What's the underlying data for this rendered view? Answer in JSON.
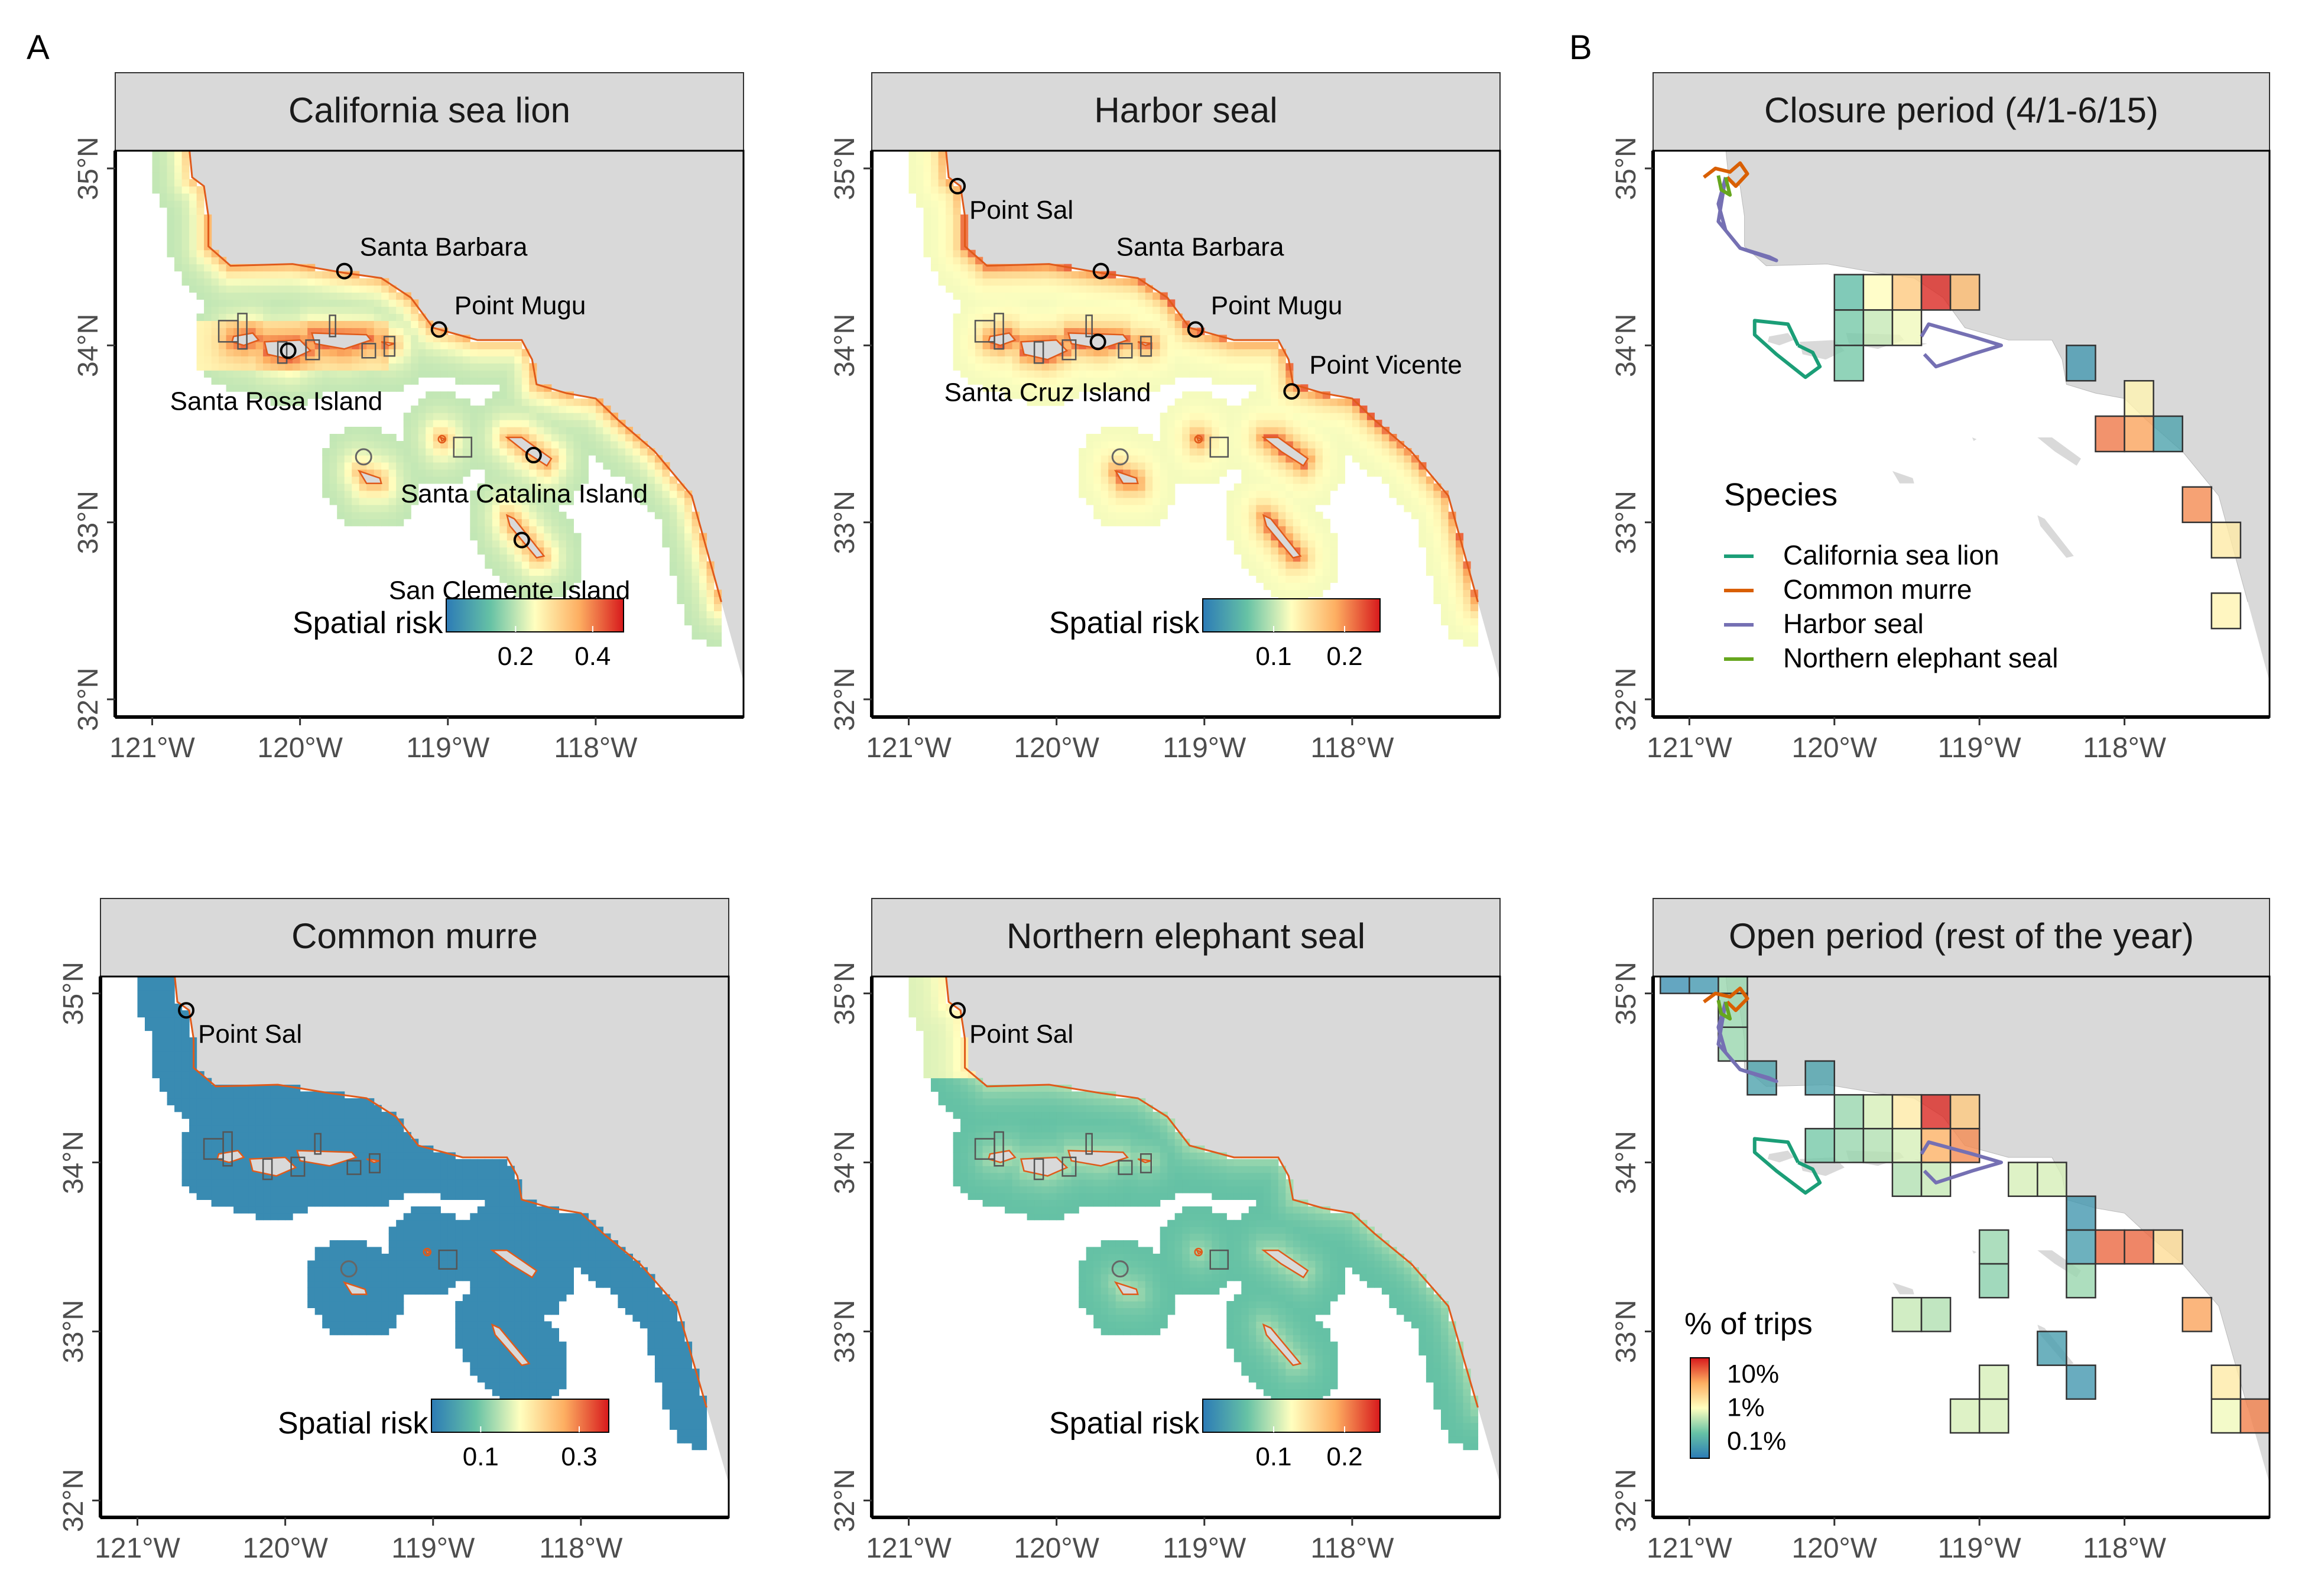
{
  "figure": {
    "panel_letters": [
      "A",
      "B"
    ]
  },
  "axes": {
    "x_ticks": [
      "121°W",
      "120°W",
      "119°W",
      "118°W"
    ],
    "y_ticks": [
      "32°N",
      "33°N",
      "34°N",
      "35°N"
    ]
  },
  "chart_data": [
    {
      "type": "heatmap",
      "title": "California sea lion",
      "xlim": [
        -121.25,
        -117.0
      ],
      "ylim": [
        31.9,
        35.1
      ],
      "colorbar": {
        "label": "Spatial risk",
        "ticks": [
          0.2,
          0.4
        ],
        "range": [
          0.02,
          0.48
        ]
      },
      "base_level": 0.2,
      "places": [
        {
          "name": "Santa Barbara",
          "lon": -119.7,
          "lat": 34.42
        },
        {
          "name": "Point Mugu",
          "lon": -119.06,
          "lat": 34.09
        },
        {
          "name": "Santa Rosa Island",
          "lon": -120.08,
          "lat": 33.97
        },
        {
          "name": "Santa Catalina Island",
          "lon": -118.42,
          "lat": 33.38
        },
        {
          "name": "San Clemente Island",
          "lon": -118.5,
          "lat": 32.9
        }
      ]
    },
    {
      "type": "heatmap",
      "title": "Harbor seal",
      "xlim": [
        -121.25,
        -117.0
      ],
      "ylim": [
        31.9,
        35.1
      ],
      "colorbar": {
        "label": "Spatial risk",
        "ticks": [
          0.1,
          0.2
        ],
        "range": [
          0.0,
          0.25
        ]
      },
      "base_level": 0.12,
      "places": [
        {
          "name": "Point Sal",
          "lon": -120.67,
          "lat": 34.9
        },
        {
          "name": "Santa Barbara",
          "lon": -119.7,
          "lat": 34.42
        },
        {
          "name": "Point Mugu",
          "lon": -119.06,
          "lat": 34.09
        },
        {
          "name": "Santa Cruz Island",
          "lon": -119.72,
          "lat": 34.02
        },
        {
          "name": "Point Vicente",
          "lon": -118.41,
          "lat": 33.74
        }
      ]
    },
    {
      "type": "heatmap",
      "title": "Common murre",
      "xlim": [
        -121.25,
        -117.0
      ],
      "ylim": [
        31.9,
        35.1
      ],
      "colorbar": {
        "label": "Spatial risk",
        "ticks": [
          0.1,
          0.3
        ],
        "range": [
          0.0,
          0.36
        ]
      },
      "base_level": 0.01,
      "places": [
        {
          "name": "Point Sal",
          "lon": -120.67,
          "lat": 34.9
        }
      ]
    },
    {
      "type": "heatmap",
      "title": "Northern elephant seal",
      "xlim": [
        -121.25,
        -117.0
      ],
      "ylim": [
        31.9,
        35.1
      ],
      "colorbar": {
        "label": "Spatial risk",
        "ticks": [
          0.1,
          0.2
        ],
        "range": [
          0.0,
          0.25
        ]
      },
      "base_level": 0.06,
      "places": [
        {
          "name": "Point Sal",
          "lon": -120.67,
          "lat": 34.9
        }
      ]
    },
    {
      "type": "heatmap",
      "title": "Closure period (4/1-6/15)",
      "xlim": [
        -121.25,
        -117.0
      ],
      "ylim": [
        31.9,
        35.1
      ],
      "legend": {
        "title": "Species",
        "entries": [
          {
            "name": "California sea lion",
            "color": "#1b9e77"
          },
          {
            "name": "Common murre",
            "color": "#d95f02"
          },
          {
            "name": "Harbor seal",
            "color": "#7570b3"
          },
          {
            "name": "Northern elephant seal",
            "color": "#66a61e"
          }
        ]
      },
      "cells": [
        {
          "lon": -120.0,
          "lat": 34.2,
          "pct": 0.15
        },
        {
          "lon": -119.8,
          "lat": 34.2,
          "pct": 1.0
        },
        {
          "lon": -119.6,
          "lat": 34.2,
          "pct": 3.0
        },
        {
          "lon": -119.4,
          "lat": 34.2,
          "pct": 25.0
        },
        {
          "lon": -119.2,
          "lat": 34.2,
          "pct": 4.0
        },
        {
          "lon": -120.0,
          "lat": 34.0,
          "pct": 0.2
        },
        {
          "lon": -119.8,
          "lat": 34.0,
          "pct": 0.5
        },
        {
          "lon": -119.6,
          "lat": 34.0,
          "pct": 0.8
        },
        {
          "lon": -120.0,
          "lat": 33.8,
          "pct": 0.2
        },
        {
          "lon": -118.4,
          "lat": 33.8,
          "pct": 0.06
        },
        {
          "lon": -118.0,
          "lat": 33.6,
          "pct": 1.2
        },
        {
          "lon": -118.2,
          "lat": 33.4,
          "pct": 10.0
        },
        {
          "lon": -118.0,
          "lat": 33.4,
          "pct": 6.0
        },
        {
          "lon": -117.8,
          "lat": 33.4,
          "pct": 0.08
        },
        {
          "lon": -117.6,
          "lat": 33.0,
          "pct": 8.0
        },
        {
          "lon": -117.4,
          "lat": 32.8,
          "pct": 1.5
        },
        {
          "lon": -117.4,
          "lat": 32.4,
          "pct": 1.2
        }
      ]
    },
    {
      "type": "heatmap",
      "title": "Open period (rest of the year)",
      "xlim": [
        -121.25,
        -117.0
      ],
      "ylim": [
        31.9,
        35.1
      ],
      "colorbar": {
        "label": "% of trips",
        "ticks": [
          "10%",
          "1%",
          "0.1%"
        ],
        "range": [
          0.03,
          30
        ]
      },
      "cells": [
        {
          "lon": -121.2,
          "lat": 35.0,
          "pct": 0.05
        },
        {
          "lon": -121.0,
          "lat": 35.0,
          "pct": 0.06
        },
        {
          "lon": -120.8,
          "lat": 35.0,
          "pct": 0.3
        },
        {
          "lon": -120.8,
          "lat": 34.8,
          "pct": 0.3
        },
        {
          "lon": -120.8,
          "lat": 34.6,
          "pct": 0.3
        },
        {
          "lon": -120.6,
          "lat": 34.4,
          "pct": 0.08
        },
        {
          "lon": -120.2,
          "lat": 34.4,
          "pct": 0.08
        },
        {
          "lon": -120.0,
          "lat": 34.2,
          "pct": 0.3
        },
        {
          "lon": -119.8,
          "lat": 34.2,
          "pct": 0.6
        },
        {
          "lon": -119.6,
          "lat": 34.2,
          "pct": 1.5
        },
        {
          "lon": -119.4,
          "lat": 34.2,
          "pct": 25.0
        },
        {
          "lon": -119.2,
          "lat": 34.2,
          "pct": 3.0
        },
        {
          "lon": -120.2,
          "lat": 34.0,
          "pct": 0.2
        },
        {
          "lon": -120.0,
          "lat": 34.0,
          "pct": 0.3
        },
        {
          "lon": -119.8,
          "lat": 34.0,
          "pct": 0.4
        },
        {
          "lon": -119.6,
          "lat": 34.0,
          "pct": 0.6
        },
        {
          "lon": -119.4,
          "lat": 34.0,
          "pct": 5.0
        },
        {
          "lon": -119.2,
          "lat": 34.0,
          "pct": 8.0
        },
        {
          "lon": -119.6,
          "lat": 33.8,
          "pct": 0.4
        },
        {
          "lon": -119.4,
          "lat": 33.8,
          "pct": 0.5
        },
        {
          "lon": -118.8,
          "lat": 33.8,
          "pct": 0.6
        },
        {
          "lon": -118.6,
          "lat": 33.8,
          "pct": 0.6
        },
        {
          "lon": -118.4,
          "lat": 33.6,
          "pct": 0.06
        },
        {
          "lon": -118.4,
          "lat": 33.4,
          "pct": 0.07
        },
        {
          "lon": -118.2,
          "lat": 33.4,
          "pct": 12.0
        },
        {
          "lon": -118.0,
          "lat": 33.4,
          "pct": 12.0
        },
        {
          "lon": -117.8,
          "lat": 33.4,
          "pct": 2.0
        },
        {
          "lon": -119.0,
          "lat": 33.4,
          "pct": 0.3
        },
        {
          "lon": -119.0,
          "lat": 33.2,
          "pct": 0.25
        },
        {
          "lon": -118.4,
          "lat": 33.2,
          "pct": 0.3
        },
        {
          "lon": -119.6,
          "lat": 33.0,
          "pct": 0.5
        },
        {
          "lon": -119.4,
          "lat": 33.0,
          "pct": 0.4
        },
        {
          "lon": -117.6,
          "lat": 33.0,
          "pct": 6.0
        },
        {
          "lon": -118.6,
          "lat": 32.8,
          "pct": 0.07
        },
        {
          "lon": -117.4,
          "lat": 32.6,
          "pct": 1.5
        },
        {
          "lon": -119.2,
          "lat": 32.4,
          "pct": 0.6
        },
        {
          "lon": -119.0,
          "lat": 32.4,
          "pct": 0.6
        },
        {
          "lon": -119.0,
          "lat": 32.6,
          "pct": 0.6
        },
        {
          "lon": -118.4,
          "lat": 32.6,
          "pct": 0.06
        },
        {
          "lon": -117.4,
          "lat": 32.4,
          "pct": 0.8
        },
        {
          "lon": -117.2,
          "lat": 32.4,
          "pct": 9.0
        }
      ]
    }
  ]
}
